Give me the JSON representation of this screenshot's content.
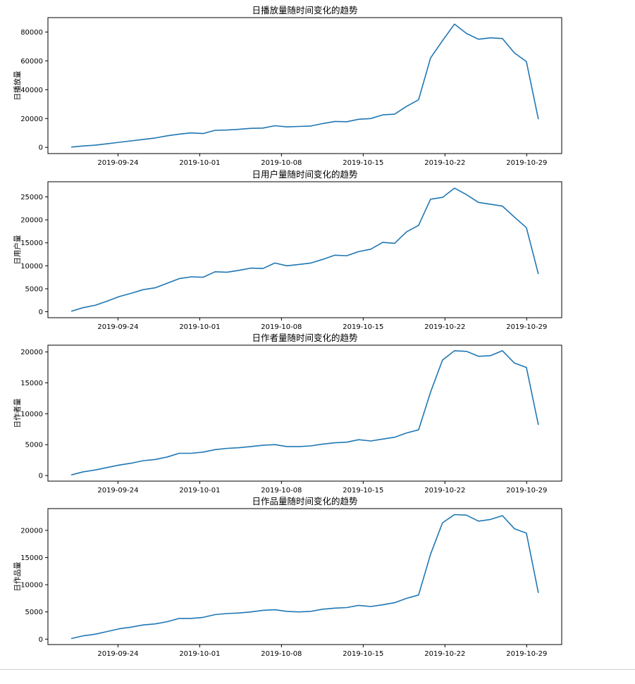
{
  "chart_data": [
    {
      "type": "line",
      "title": "日播放量随时间变化的趋势",
      "xlabel": "",
      "ylabel": "日播放量",
      "x_start": "2019-09-20",
      "x_end": "2019-10-30",
      "xticks": [
        "2019-09-24",
        "2019-10-01",
        "2019-10-08",
        "2019-10-15",
        "2019-10-22",
        "2019-10-29"
      ],
      "yticks": [
        0,
        20000,
        40000,
        60000,
        80000
      ],
      "ylim": [
        -4300,
        90000
      ],
      "color": "#1f77b4",
      "series": [
        {
          "values": [
            200,
            1000,
            1500,
            2500,
            3500,
            4500,
            5500,
            6500,
            8000,
            9200,
            10000,
            9600,
            11800,
            12000,
            12500,
            13200,
            13400,
            15000,
            14200,
            14500,
            14800,
            16500,
            18000,
            17800,
            19500,
            20000,
            22500,
            23000,
            28500,
            33000,
            62000,
            74000,
            85500,
            79000,
            75000,
            76000,
            75500,
            65500,
            59500,
            19500
          ]
        }
      ]
    },
    {
      "type": "line",
      "title": "日用户量随时间变化的趋势",
      "xlabel": "",
      "ylabel": "日用户量",
      "x_start": "2019-09-20",
      "x_end": "2019-10-30",
      "xticks": [
        "2019-09-24",
        "2019-10-01",
        "2019-10-08",
        "2019-10-15",
        "2019-10-22",
        "2019-10-29"
      ],
      "yticks": [
        0,
        5000,
        10000,
        15000,
        20000,
        25000
      ],
      "ylim": [
        -1300,
        28300
      ],
      "color": "#1f77b4",
      "series": [
        {
          "values": [
            100,
            900,
            1400,
            2300,
            3300,
            4000,
            4800,
            5200,
            6200,
            7200,
            7600,
            7500,
            8700,
            8600,
            9000,
            9500,
            9400,
            10600,
            10000,
            10300,
            10600,
            11400,
            12300,
            12200,
            13100,
            13600,
            15100,
            14900,
            17400,
            18800,
            24500,
            24900,
            26900,
            25500,
            23800,
            23400,
            23000,
            20600,
            18300,
            8200
          ]
        }
      ]
    },
    {
      "type": "line",
      "title": "日作者量随时间变化的趋势",
      "xlabel": "",
      "ylabel": "日作者量",
      "x_start": "2019-09-20",
      "x_end": "2019-10-30",
      "xticks": [
        "2019-09-24",
        "2019-10-01",
        "2019-10-08",
        "2019-10-15",
        "2019-10-22",
        "2019-10-29"
      ],
      "yticks": [
        0,
        5000,
        10000,
        15000,
        20000
      ],
      "ylim": [
        -900,
        21100
      ],
      "color": "#1f77b4",
      "series": [
        {
          "values": [
            100,
            600,
            900,
            1300,
            1700,
            2000,
            2400,
            2600,
            3000,
            3600,
            3600,
            3800,
            4200,
            4400,
            4500,
            4700,
            4900,
            5000,
            4700,
            4700,
            4800,
            5100,
            5300,
            5400,
            5800,
            5600,
            5900,
            6200,
            6900,
            7400,
            13500,
            18700,
            20200,
            20100,
            19300,
            19400,
            20200,
            18200,
            17500,
            8200
          ]
        }
      ]
    },
    {
      "type": "line",
      "title": "日作品量随时间变化的趋势",
      "xlabel": "",
      "ylabel": "日作品量",
      "x_start": "2019-09-20",
      "x_end": "2019-10-30",
      "xticks": [
        "2019-09-24",
        "2019-10-01",
        "2019-10-08",
        "2019-10-15",
        "2019-10-22",
        "2019-10-29"
      ],
      "yticks": [
        0,
        5000,
        10000,
        15000,
        20000
      ],
      "ylim": [
        -1000,
        24000
      ],
      "color": "#1f77b4",
      "series": [
        {
          "values": [
            100,
            600,
            900,
            1400,
            1900,
            2200,
            2600,
            2800,
            3200,
            3800,
            3800,
            4000,
            4500,
            4700,
            4800,
            5000,
            5300,
            5400,
            5100,
            5000,
            5100,
            5500,
            5700,
            5800,
            6200,
            6000,
            6300,
            6700,
            7500,
            8100,
            15600,
            21400,
            22900,
            22800,
            21700,
            22000,
            22700,
            20300,
            19500,
            8500
          ]
        }
      ]
    }
  ]
}
